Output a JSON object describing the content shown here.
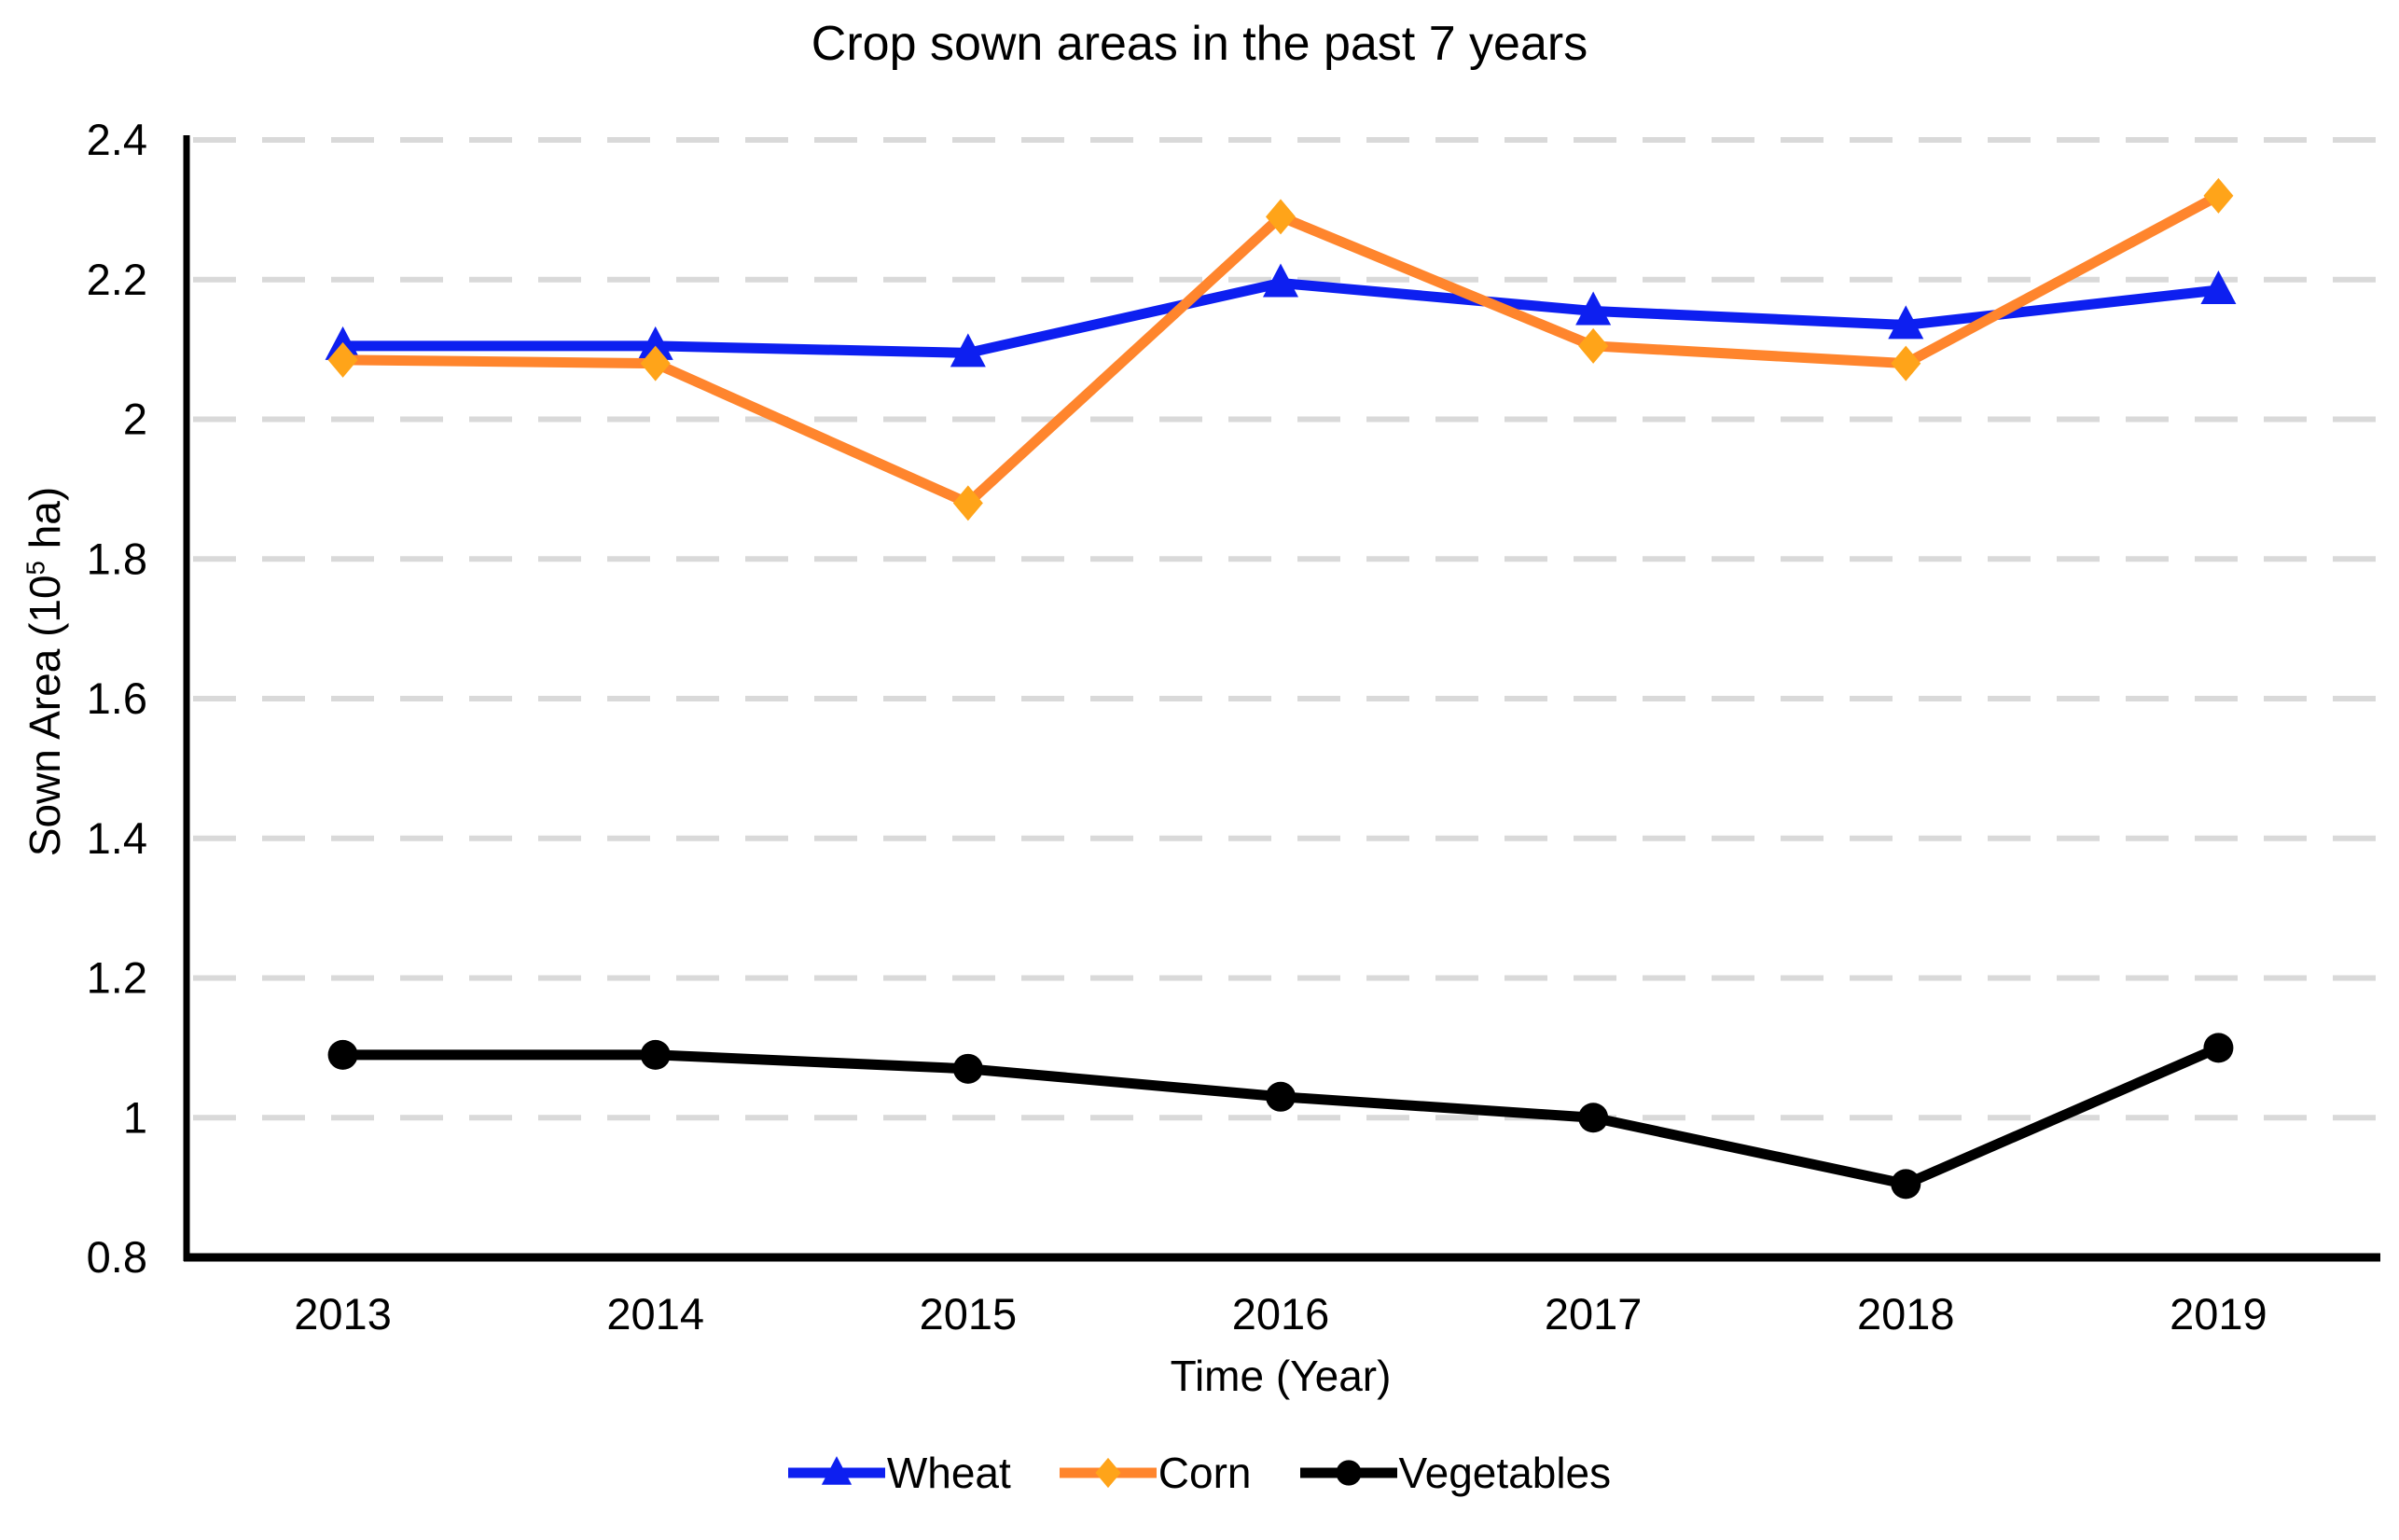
{
  "chart_data": {
    "type": "line",
    "title": "Crop sown areas in the past 7 years",
    "xlabel": "Time (Year)",
    "ylabel": "Sown Area (10⁵ ha)",
    "ylabel_parts": {
      "prefix": "Sown Area (10",
      "superscript": "5",
      "suffix": " ha)"
    },
    "categories": [
      "2013",
      "2014",
      "2015",
      "2016",
      "2017",
      "2018",
      "2019"
    ],
    "series": [
      {
        "name": "Wheat",
        "marker": "triangle",
        "line_color": "#0d1ff0",
        "marker_color": "#0d1ff0",
        "values": [
          2.105,
          2.105,
          2.095,
          2.195,
          2.155,
          2.135,
          2.185
        ]
      },
      {
        "name": "Corn",
        "marker": "diamond",
        "line_color": "#ff852d",
        "marker_color": "#ffa419",
        "values": [
          2.085,
          2.08,
          1.88,
          2.29,
          2.105,
          2.08,
          2.32
        ]
      },
      {
        "name": "Vegetables",
        "marker": "circle",
        "line_color": "#000000",
        "marker_color": "#000000",
        "values": [
          1.09,
          1.09,
          1.07,
          1.03,
          1.0,
          0.905,
          1.1
        ]
      }
    ],
    "ylim": [
      0.8,
      2.4
    ],
    "yticks": [
      0.8,
      1,
      1.2,
      1.4,
      1.6,
      1.8,
      2,
      2.2,
      2.4
    ],
    "ytick_labels": [
      "0.8",
      "1",
      "1.2",
      "1.4",
      "1.6",
      "1.8",
      "2",
      "2.2",
      "2.4"
    ],
    "grid": "horizontal dashed",
    "gridline_color": "#d9d9d9",
    "axis_color": "#000000",
    "legend_position": "bottom"
  }
}
